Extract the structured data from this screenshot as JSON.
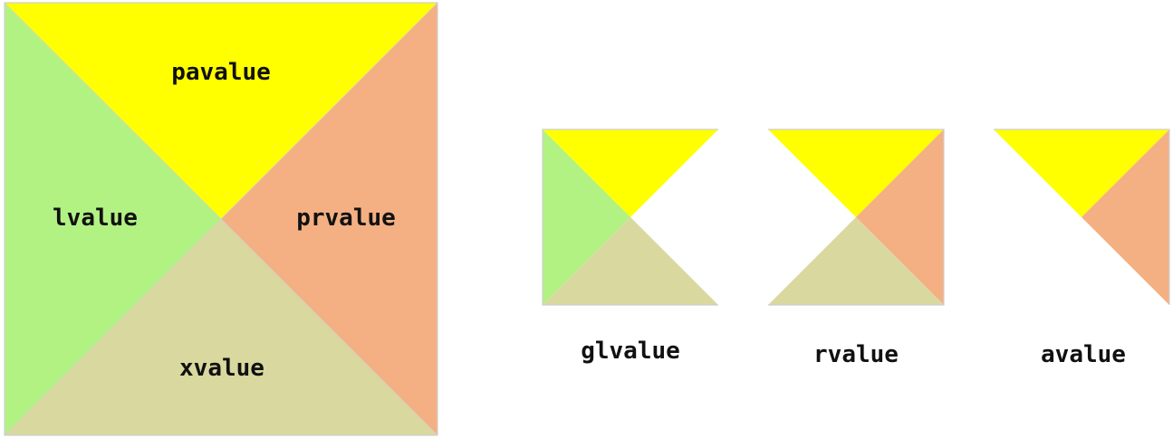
{
  "colors": {
    "pavalue": "#ffff00",
    "lvalue": "#b2f283",
    "prvalue": "#f4b083",
    "xvalue": "#d9d89f",
    "border": "#cfcfcf"
  },
  "main_square": {
    "labels": {
      "top": "pavalue",
      "left": "lvalue",
      "right": "prvalue",
      "bottom": "xvalue"
    }
  },
  "small_squares": [
    {
      "caption": "glvalue",
      "regions": [
        "pavalue",
        "lvalue",
        "xvalue"
      ]
    },
    {
      "caption": "rvalue",
      "regions": [
        "pavalue",
        "prvalue",
        "xvalue"
      ]
    },
    {
      "caption": "avalue",
      "regions": [
        "pavalue",
        "prvalue"
      ]
    }
  ]
}
